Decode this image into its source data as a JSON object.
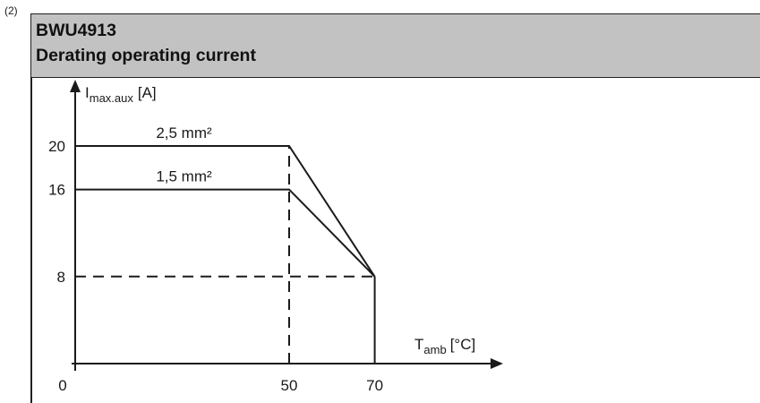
{
  "note": "(2)",
  "header": {
    "line1": "BWU4913",
    "line2": "Derating operating current"
  },
  "chart_data": {
    "type": "line",
    "y_axis": {
      "symbol": "I",
      "subscript": "max.aux",
      "unit": "[A]"
    },
    "x_axis": {
      "symbol": "T",
      "subscript": "amb",
      "unit": "[°C]"
    },
    "x_ticks": [
      "0",
      "50",
      "70"
    ],
    "y_ticks": [
      "20",
      "16",
      "8"
    ],
    "xlim": [
      0,
      90
    ],
    "ylim": [
      0,
      25
    ],
    "series": [
      {
        "name": "2,5 mm²",
        "x": [
          0,
          50,
          70
        ],
        "y": [
          20,
          20,
          8
        ]
      },
      {
        "name": "1,5 mm²",
        "x": [
          0,
          50,
          70
        ],
        "y": [
          16,
          16,
          8
        ]
      }
    ],
    "reference_lines": [
      {
        "axis": "x",
        "value": 50,
        "from": 0,
        "to": 20,
        "style": "dashed"
      },
      {
        "axis": "y",
        "value": 8,
        "from": 0,
        "to": 70,
        "style": "dashed"
      },
      {
        "axis": "x",
        "value": 70,
        "from": 0,
        "to": 8,
        "style": "solid"
      }
    ]
  }
}
